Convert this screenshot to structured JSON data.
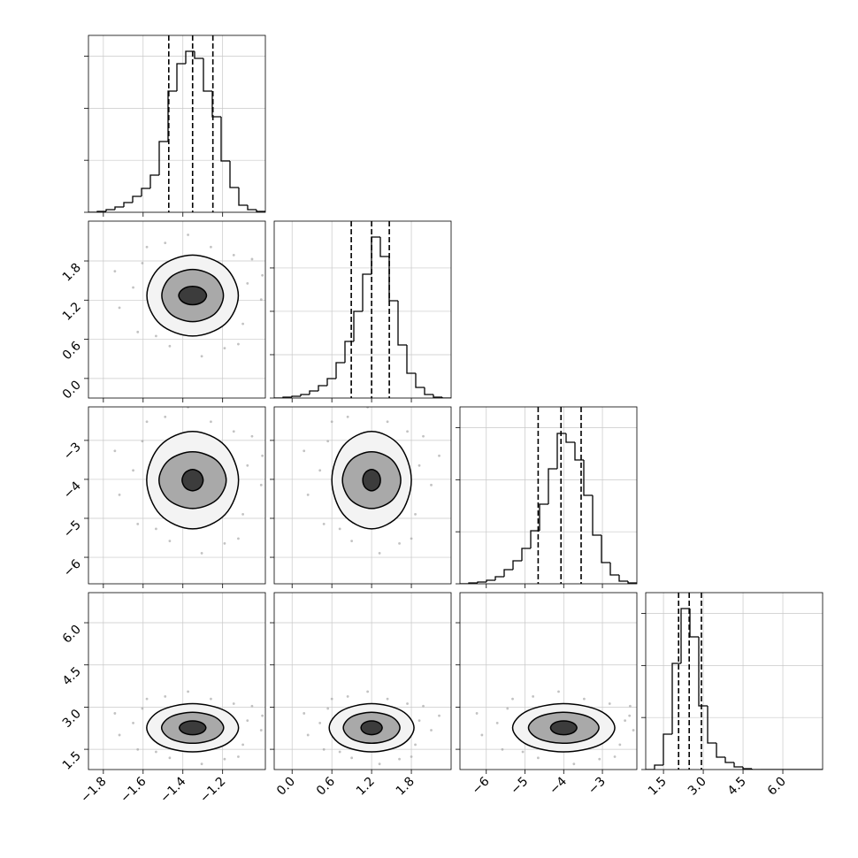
{
  "chart_data": [
    {
      "type": "histogram",
      "xlim": [
        -1.875,
        -0.985
      ],
      "ylim": [
        0,
        3400
      ],
      "xticks": [
        {
          "value": -1.8,
          "label": "−1.8"
        },
        {
          "value": -1.6,
          "label": "−1.6"
        },
        {
          "value": -1.4,
          "label": "−1.4"
        },
        {
          "value": -1.2,
          "label": "−1.2"
        }
      ],
      "yticks": [
        0,
        1000,
        2000,
        3000
      ],
      "bins": [
        -1.875,
        -1.8305,
        -1.786,
        -1.7415,
        -1.697,
        -1.6525,
        -1.608,
        -1.5635,
        -1.519,
        -1.4745,
        -1.43,
        -1.3855,
        -1.341,
        -1.2965,
        -1.252,
        -1.2075,
        -1.163,
        -1.1185,
        -1.074,
        -1.0295,
        -0.985
      ],
      "counts": [
        0,
        17,
        51,
        102,
        187,
        306,
        459,
        714,
        1360,
        2329,
        2856,
        3094,
        2958,
        2329,
        1836,
        986,
        476,
        136,
        51,
        17
      ],
      "quantiles": [
        -1.471,
        -1.351,
        -1.249
      ]
    },
    {
      "type": "scatter",
      "xlim": [
        -1.875,
        -0.985
      ],
      "ylim": [
        -0.3,
        2.41
      ],
      "xticks": [
        {
          "value": -1.8,
          "label": "−1.8"
        },
        {
          "value": -1.6,
          "label": "−1.6"
        },
        {
          "value": -1.4,
          "label": "−1.4"
        },
        {
          "value": -1.2,
          "label": "−1.2"
        }
      ],
      "yticks": [
        {
          "value": 0,
          "label": "0.0"
        },
        0.6,
        1.2,
        1.8
      ],
      "x": [
        -1.075,
        -1.65,
        -1.259,
        -1.466,
        -1.098,
        -1.604,
        -1.144,
        -1.535,
        -1.006,
        -1.719,
        -1.305,
        -1.374,
        -1.052,
        -1.627,
        -1.19,
        -1.489,
        -1.0,
        -1.742,
        -1.121,
        -1.581
      ],
      "y": [
        1.456,
        1.394,
        2.014,
        0.495,
        0.836,
        1.766,
        1.89,
        0.65,
        1.208,
        1.084,
        0.34,
        2.2,
        1.828,
        0.712,
        0.464,
        2.076,
        1.58,
        1.642,
        0.526,
        2.014
      ],
      "contours": [
        {
          "x": [
            -1.121,
            -1.188,
            -1.351,
            -1.514,
            -1.581,
            -1.514,
            -1.351,
            -1.188
          ],
          "y": [
            1.27,
            1.708,
            1.89,
            1.708,
            1.27,
            0.832,
            0.65,
            0.832
          ]
        },
        {
          "x": [
            -1.196,
            -1.241,
            -1.351,
            -1.461,
            -1.506,
            -1.461,
            -1.351,
            -1.241
          ],
          "y": [
            1.27,
            1.553,
            1.67,
            1.553,
            1.27,
            0.987,
            0.87,
            0.987
          ]
        },
        {
          "x": [
            -1.281,
            -1.302,
            -1.351,
            -1.4,
            -1.421,
            -1.4,
            -1.351,
            -1.302
          ],
          "y": [
            1.27,
            1.369,
            1.41,
            1.369,
            1.27,
            1.171,
            1.13,
            1.171
          ]
        }
      ]
    },
    {
      "type": "histogram",
      "xlim": [
        -0.27,
        2.4
      ],
      "ylim": [
        0,
        4080
      ],
      "xticks": [
        {
          "value": 0,
          "label": "0.0"
        },
        0.6,
        1.2,
        1.8
      ],
      "yticks": [
        0,
        1000,
        2000,
        3000
      ],
      "bins": [
        -0.27,
        -0.1365,
        -0.003,
        0.1305,
        0.264,
        0.3975,
        0.531,
        0.6645,
        0.798,
        0.9315,
        1.065,
        1.1985,
        1.332,
        1.4655,
        1.599,
        1.7325,
        1.866,
        1.9995,
        2.133,
        2.2665,
        2.4
      ],
      "counts": [
        0,
        20,
        41,
        82,
        163,
        286,
        449,
        816,
        1306,
        1999,
        2856,
        3713,
        3264,
        2244,
        1224,
        571,
        245,
        82,
        20,
        0
      ],
      "quantiles": [
        0.893,
        1.2,
        1.467
      ]
    },
    {
      "type": "scatter",
      "xlim": [
        -1.875,
        -0.985
      ],
      "ylim": [
        -6.68,
        -2.14
      ],
      "xticks": [
        {
          "value": -1.8,
          "label": "−1.8"
        },
        {
          "value": -1.6,
          "label": "−1.6"
        },
        {
          "value": -1.4,
          "label": "−1.4"
        },
        {
          "value": -1.2,
          "label": "−1.2"
        }
      ],
      "yticks": [
        {
          "value": -6,
          "label": "−6"
        },
        {
          "value": -5,
          "label": "−5"
        },
        {
          "value": -4,
          "label": "−4"
        },
        {
          "value": -3,
          "label": "−3"
        }
      ],
      "x": [
        -1.075,
        -1.65,
        -1.259,
        -1.466,
        -1.098,
        -1.604,
        -1.144,
        -1.535,
        -1.006,
        -1.719,
        -1.305,
        -1.374,
        -1.052,
        -1.627,
        -1.19,
        -1.489,
        -1.0,
        -1.742,
        -1.121,
        -1.581
      ],
      "y": [
        -3.645,
        -3.77,
        -2.52,
        -5.583,
        -4.895,
        -3.02,
        -2.77,
        -5.27,
        -4.145,
        -4.395,
        -5.895,
        -2.145,
        -2.895,
        -5.145,
        -5.645,
        -2.395,
        -3.395,
        -3.27,
        -5.52,
        -2.52
      ],
      "contours": [
        {
          "x": [
            -1.12,
            -1.188,
            -1.351,
            -1.514,
            -1.582,
            -1.514,
            -1.351,
            -1.188
          ],
          "y": [
            -4.02,
            -3.136,
            -2.77,
            -3.136,
            -4.02,
            -4.904,
            -5.27,
            -4.904
          ]
        },
        {
          "x": [
            -1.182,
            -1.232,
            -1.351,
            -1.47,
            -1.52,
            -1.47,
            -1.351,
            -1.232
          ],
          "y": [
            -4.02,
            -3.506,
            -3.293,
            -3.506,
            -4.02,
            -4.534,
            -4.747,
            -4.534
          ]
        },
        {
          "x": [
            -1.298,
            -1.314,
            -1.351,
            -1.388,
            -1.404,
            -1.388,
            -1.351,
            -1.314
          ],
          "y": [
            -4.02,
            -3.827,
            -3.747,
            -3.827,
            -4.02,
            -4.213,
            -4.293,
            -4.213
          ]
        }
      ]
    },
    {
      "type": "scatter",
      "xlim": [
        -0.27,
        2.4
      ],
      "ylim": [
        -6.68,
        -2.14
      ],
      "xticks": [
        {
          "value": 0,
          "label": "0.0"
        },
        0.6,
        1.2,
        1.8
      ],
      "yticks": [
        {
          "value": -6,
          "label": "−6"
        },
        {
          "value": -5,
          "label": "−5"
        },
        {
          "value": -4,
          "label": "−4"
        },
        {
          "value": -3,
          "label": "−3"
        }
      ],
      "x": [
        1.92,
        0.42,
        1.44,
        0.9,
        1.86,
        0.54,
        1.74,
        0.72,
        2.1,
        0.24,
        1.32,
        1.14,
        1.98,
        0.48,
        1.62,
        0.84,
        2.22,
        0.18,
        1.8,
        0.6
      ],
      "y": [
        -3.645,
        -3.77,
        -2.52,
        -5.583,
        -4.895,
        -3.02,
        -2.77,
        -5.27,
        -4.145,
        -4.395,
        -5.895,
        -2.145,
        -2.895,
        -5.145,
        -5.645,
        -2.395,
        -3.395,
        -3.27,
        -5.52,
        -2.52
      ],
      "contours": [
        {
          "x": [
            1.8,
            1.624,
            1.2,
            0.776,
            0.6,
            0.776,
            1.2,
            1.624
          ],
          "y": [
            -4.02,
            -3.136,
            -2.77,
            -3.136,
            -4.02,
            -4.904,
            -5.27,
            -4.904
          ]
        },
        {
          "x": [
            1.64,
            1.511,
            1.2,
            0.889,
            0.76,
            0.889,
            1.2,
            1.511
          ],
          "y": [
            -4.02,
            -3.506,
            -3.293,
            -3.506,
            -4.02,
            -4.534,
            -4.747,
            -4.534
          ]
        },
        {
          "x": [
            1.333,
            1.294,
            1.2,
            1.106,
            1.067,
            1.106,
            1.2,
            1.294
          ],
          "y": [
            -4.02,
            -3.827,
            -3.747,
            -3.827,
            -4.02,
            -4.213,
            -4.293,
            -4.213
          ]
        }
      ]
    },
    {
      "type": "histogram",
      "xlim": [
        -6.68,
        -2.11
      ],
      "ylim": [
        0,
        3400
      ],
      "xticks": [
        {
          "value": -6,
          "label": "−6"
        },
        {
          "value": -5,
          "label": "−5"
        },
        {
          "value": -4,
          "label": "−4"
        },
        {
          "value": -3,
          "label": "−3"
        }
      ],
      "yticks": [
        0,
        1000,
        2000,
        3000
      ],
      "bins": [
        -6.68,
        -6.4515,
        -6.223,
        -5.9945,
        -5.766,
        -5.5375,
        -5.309,
        -5.0805,
        -4.852,
        -4.6235,
        -4.395,
        -4.1665,
        -3.938,
        -3.7095,
        -3.481,
        -3.2525,
        -3.024,
        -2.7955,
        -2.567,
        -2.3385,
        -2.11
      ],
      "counts": [
        0,
        17,
        34,
        68,
        136,
        272,
        442,
        680,
        1020,
        1530,
        2210,
        2890,
        2720,
        2380,
        1700,
        935,
        408,
        170,
        51,
        17
      ],
      "quantiles": [
        -4.66,
        -4.07,
        -3.55
      ]
    },
    {
      "type": "scatter",
      "xlim": [
        -1.875,
        -0.985
      ],
      "ylim": [
        0.78,
        7.07
      ],
      "xticks": [
        {
          "value": -1.8,
          "label": "−1.8"
        },
        {
          "value": -1.6,
          "label": "−1.6"
        },
        {
          "value": -1.4,
          "label": "−1.4"
        },
        {
          "value": -1.2,
          "label": "−1.2"
        }
      ],
      "yticks": [
        1.5,
        {
          "value": 3,
          "label": "3.0"
        },
        4.5,
        {
          "value": 6,
          "label": "6.0"
        }
      ],
      "x": [
        -1.075,
        -1.65,
        -1.259,
        -1.466,
        -1.098,
        -1.604,
        -1.144,
        -1.535,
        -1.006,
        -1.719,
        -1.305,
        -1.374,
        -1.052,
        -1.627,
        -1.19,
        -1.489,
        -1.0,
        -1.742,
        -1.121,
        -1.581
      ],
      "y": [
        2.522,
        2.436,
        3.293,
        1.194,
        1.665,
        2.951,
        3.122,
        1.408,
        2.179,
        2.008,
        0.979,
        3.551,
        3.036,
        1.494,
        1.151,
        3.379,
        2.694,
        2.779,
        1.237,
        3.293
      ],
      "contours": [
        {
          "x": [
            -1.12,
            -1.188,
            -1.351,
            -1.514,
            -1.582,
            -1.514,
            -1.351,
            -1.188
          ],
          "y": [
            2.265,
            2.871,
            3.122,
            2.871,
            2.265,
            1.659,
            1.408,
            1.659
          ]
        },
        {
          "x": [
            -1.195,
            -1.241,
            -1.351,
            -1.461,
            -1.507,
            -1.461,
            -1.351,
            -1.241
          ],
          "y": [
            2.265,
            2.655,
            2.816,
            2.655,
            2.265,
            1.875,
            1.714,
            1.875
          ]
        },
        {
          "x": [
            -1.284,
            -1.304,
            -1.351,
            -1.398,
            -1.418,
            -1.398,
            -1.351,
            -1.304
          ],
          "y": [
            2.265,
            2.438,
            2.51,
            2.438,
            2.265,
            2.092,
            2.02,
            2.092
          ]
        }
      ]
    },
    {
      "type": "scatter",
      "xlim": [
        -0.27,
        2.4
      ],
      "ylim": [
        0.78,
        7.07
      ],
      "xticks": [
        {
          "value": 0,
          "label": "0.0"
        },
        0.6,
        1.2,
        1.8
      ],
      "yticks": [
        1.5,
        {
          "value": 3,
          "label": "3.0"
        },
        4.5,
        {
          "value": 6,
          "label": "6.0"
        }
      ],
      "x": [
        1.92,
        0.42,
        1.44,
        0.9,
        1.86,
        0.54,
        1.74,
        0.72,
        2.1,
        0.24,
        1.32,
        1.14,
        1.98,
        0.48,
        1.62,
        0.84,
        2.22,
        0.18,
        1.8,
        0.6
      ],
      "y": [
        2.522,
        2.436,
        3.293,
        1.194,
        1.665,
        2.951,
        3.122,
        1.408,
        2.179,
        2.008,
        0.979,
        3.551,
        3.036,
        1.494,
        1.151,
        3.379,
        2.694,
        2.779,
        1.237,
        3.293
      ],
      "contours": [
        {
          "x": [
            1.84,
            1.652,
            1.2,
            0.748,
            0.56,
            0.748,
            1.2,
            1.652
          ],
          "y": [
            2.265,
            2.871,
            3.122,
            2.871,
            2.265,
            1.659,
            1.408,
            1.659
          ]
        },
        {
          "x": [
            1.627,
            1.502,
            1.2,
            0.898,
            0.773,
            0.898,
            1.2,
            1.502
          ],
          "y": [
            2.265,
            2.655,
            2.816,
            2.655,
            2.265,
            1.875,
            1.714,
            1.875
          ]
        },
        {
          "x": [
            1.36,
            1.313,
            1.2,
            1.087,
            1.04,
            1.087,
            1.2,
            1.313
          ],
          "y": [
            2.265,
            2.438,
            2.51,
            2.438,
            2.265,
            2.092,
            2.02,
            2.092
          ]
        }
      ]
    },
    {
      "type": "scatter",
      "xlim": [
        -6.68,
        -2.11
      ],
      "ylim": [
        0.78,
        7.07
      ],
      "xticks": [
        {
          "value": -6,
          "label": "−6"
        },
        {
          "value": -5,
          "label": "−5"
        },
        {
          "value": -4,
          "label": "−4"
        },
        {
          "value": -3,
          "label": "−3"
        }
      ],
      "yticks": [
        1.5,
        {
          "value": 3,
          "label": "3.0"
        },
        4.5,
        {
          "value": 6,
          "label": "6.0"
        }
      ],
      "x": [
        -2.416,
        -5.716,
        -3.472,
        -4.66,
        -2.548,
        -5.452,
        -2.812,
        -5.056,
        -2.2,
        -6.112,
        -3.736,
        -4.132,
        -2.284,
        -5.584,
        -3.076,
        -4.792,
        -2.3,
        -6.244,
        -2.68,
        -5.32
      ],
      "y": [
        2.522,
        2.436,
        3.293,
        1.194,
        1.665,
        2.951,
        3.122,
        1.408,
        2.179,
        2.008,
        0.979,
        3.551,
        3.036,
        1.494,
        1.151,
        3.379,
        2.694,
        2.779,
        1.237,
        3.293
      ],
      "contours": [
        {
          "x": [
            -2.68,
            -3.067,
            -4.0,
            -4.933,
            -5.32,
            -4.933,
            -4.0,
            -3.067
          ],
          "y": [
            2.265,
            2.871,
            3.122,
            2.871,
            2.265,
            1.659,
            1.408,
            1.659
          ]
        },
        {
          "x": [
            -3.09,
            -3.357,
            -4.0,
            -4.643,
            -4.91,
            -4.643,
            -4.0,
            -3.357
          ],
          "y": [
            2.265,
            2.655,
            2.816,
            2.655,
            2.265,
            1.875,
            1.714,
            1.875
          ]
        },
        {
          "x": [
            -3.66,
            -3.76,
            -4.0,
            -4.24,
            -4.34,
            -4.24,
            -4.0,
            -3.76
          ],
          "y": [
            2.265,
            2.438,
            2.51,
            2.438,
            2.265,
            2.092,
            2.02,
            2.092
          ]
        }
      ]
    },
    {
      "type": "histogram",
      "xlim": [
        0.83,
        7.5
      ],
      "ylim": [
        0,
        3400
      ],
      "xticks": [
        1.5,
        {
          "value": 3,
          "label": "3.0"
        },
        4.5,
        {
          "value": 6,
          "label": "6.0"
        }
      ],
      "yticks": [
        0,
        1000,
        2000,
        3000
      ],
      "bins": [
        0.83,
        1.1635,
        1.497,
        1.8305,
        2.164,
        2.4975,
        2.831,
        3.1645,
        3.498,
        3.8315,
        4.165,
        4.4985,
        4.832,
        5.1655,
        5.499,
        5.8325,
        6.166,
        6.4995,
        6.833,
        7.1665,
        7.5
      ],
      "counts": [
        0,
        85,
        680,
        2040,
        3094,
        2550,
        1224,
        510,
        238,
        136,
        51,
        17,
        0,
        0,
        0,
        0,
        0,
        0,
        0,
        0
      ],
      "quantiles": [
        2.07,
        2.47,
        2.93
      ]
    }
  ]
}
